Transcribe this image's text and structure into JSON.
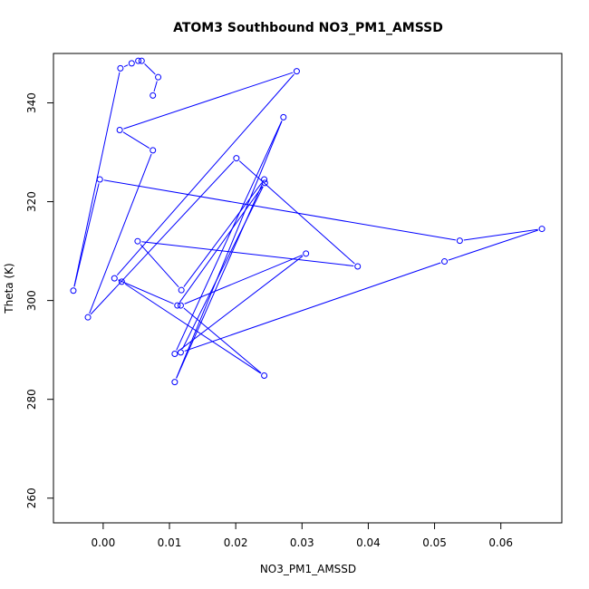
{
  "chart_data": {
    "type": "line",
    "title": "ATOM3 Southbound NO3_PM1_AMSSD",
    "xlabel": "NO3_PM1_AMSSD",
    "ylabel": "Theta (K)",
    "xlim": [
      -0.0075,
      0.0692
    ],
    "ylim": [
      255,
      350
    ],
    "xticks": [
      0.0,
      0.01,
      0.02,
      0.03,
      0.04,
      0.05,
      0.06
    ],
    "xtick_labels": [
      "0.00",
      "0.01",
      "0.02",
      "0.03",
      "0.04",
      "0.05",
      "0.06"
    ],
    "yticks": [
      260,
      280,
      300,
      320,
      340
    ],
    "ytick_labels": [
      "260",
      "280",
      "300",
      "320",
      "340"
    ],
    "grid": false,
    "markers": "open-circle",
    "color": "#0000ff",
    "series": [
      {
        "x": [
          0.0075,
          0.0083,
          0.0058,
          0.0053,
          0.0043,
          0.0026,
          -0.0045,
          -0.0005,
          0.0538,
          0.0662,
          0.0515,
          0.0117,
          0.0244,
          0.0112,
          0.0017,
          0.0292,
          0.0025,
          0.0075,
          -0.0023,
          0.0201,
          0.0384,
          0.0052,
          0.0118,
          0.0243,
          0.0108,
          0.0272,
          0.0108,
          0.0306,
          0.0117,
          0.0243,
          0.0028
        ],
        "y": [
          341.5,
          345.2,
          348.5,
          348.5,
          348.0,
          347.0,
          302.0,
          324.5,
          312.1,
          314.5,
          307.9,
          289.5,
          323.8,
          299.0,
          304.5,
          346.4,
          334.5,
          330.4,
          296.6,
          328.8,
          306.9,
          312.0,
          302.1,
          324.5,
          283.5,
          337.1,
          289.2,
          309.5,
          299.0,
          284.8,
          303.8
        ]
      }
    ]
  }
}
